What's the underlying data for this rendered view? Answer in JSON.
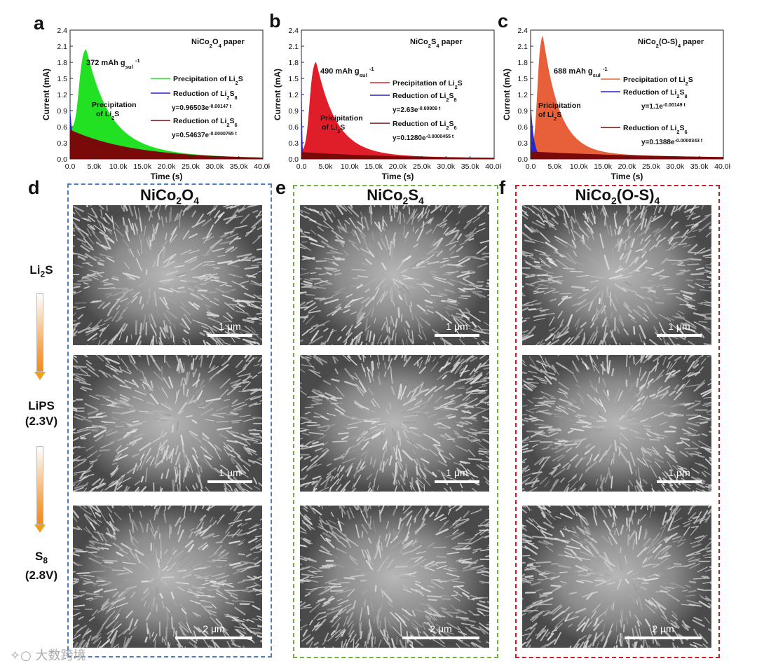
{
  "panel_letters": {
    "a": "a",
    "b": "b",
    "c": "c",
    "d": "d",
    "e": "e",
    "f": "f"
  },
  "chart_data": [
    {
      "type": "area",
      "panel": "a",
      "title": "NiCo2O4 paper",
      "title_main": "NiCo",
      "title_sub1": "2",
      "title_mid": "O",
      "title_sub2": "4",
      "title_end": " paper",
      "xlabel": "Time (s)",
      "ylabel": "Current (mA)",
      "xlim": [
        0,
        40000
      ],
      "ylim": [
        0,
        2.4
      ],
      "xticks": [
        "0.0",
        "5.0k",
        "10.0k",
        "15.0k",
        "20.0k",
        "25.0k",
        "30.0k",
        "35.0k",
        "40.0k"
      ],
      "yticks": [
        "0.0",
        "0.3",
        "0.6",
        "0.9",
        "1.2",
        "1.5",
        "1.8",
        "2.1",
        "2.4"
      ],
      "capacity_label": {
        "value": "372 mAh g",
        "sub": "sul",
        "sup": "-1"
      },
      "peak": {
        "t": 3300,
        "current": 1.76
      },
      "series": [
        {
          "name": "Precipitation of Li2S",
          "color": "#22e022"
        },
        {
          "name": "Reduction of Li2S8",
          "color": "#2222cc"
        },
        {
          "name": "Reduction of Li2S6",
          "color": "#7a0a0a"
        }
      ],
      "fits": {
        "li2s8": {
          "y": "y=0.96503e",
          "exp": "-0.00147 t",
          "a": 0.96503,
          "k": 0.00147
        },
        "li2s6": {
          "y": "y=0.54637e",
          "exp": "-0.0000765 t",
          "a": 0.54637,
          "k": 7.65e-05
        }
      },
      "annotation": {
        "line1": "Precipitation",
        "line2": "of Li",
        "sub": "2",
        "end": "S"
      },
      "colors": {
        "precip": "#22e022",
        "s8": "#2222cc",
        "s6": "#7a0a0a"
      }
    },
    {
      "type": "area",
      "panel": "b",
      "title": "NiCo2S4 paper",
      "title_main": "NiCo",
      "title_sub1": "2",
      "title_mid": "S",
      "title_sub2": "4",
      "title_end": " paper",
      "xlabel": "Time (s)",
      "ylabel": "Current (mA)",
      "xlim": [
        0,
        40000
      ],
      "ylim": [
        0,
        2.4
      ],
      "xticks": [
        "0.0",
        "5.0k",
        "10.0k",
        "15.0k",
        "20.0k",
        "25.0k",
        "30.0k",
        "35.0k",
        "40.0k"
      ],
      "yticks": [
        "0.0",
        "0.3",
        "0.6",
        "0.9",
        "1.2",
        "1.5",
        "1.8",
        "2.1",
        "2.4"
      ],
      "capacity_label": {
        "value": "490 mAh g",
        "sub": "sul",
        "sup": "-1"
      },
      "peak": {
        "t": 3000,
        "current": 1.78
      },
      "series": [
        {
          "name": "Precipitation of Li2S",
          "color": "#e01e2a"
        },
        {
          "name": "Reduction of Li2S8",
          "color": "#2222cc"
        },
        {
          "name": "Reduction of Li2S6",
          "color": "#7a0a0a"
        }
      ],
      "fits": {
        "li2s8": {
          "y": "y=2.63e",
          "exp": "-0.00909 t",
          "a": 2.63,
          "k": 0.00909
        },
        "li2s6": {
          "y": "y=0.1280e",
          "exp": "-0.0000455 t",
          "a": 0.128,
          "k": 4.55e-05
        }
      },
      "annotation": {
        "line1": "Pricipitation",
        "line2": "of Li",
        "sub": "2",
        "end": "S"
      },
      "colors": {
        "precip": "#e01e2a",
        "s8": "#2222cc",
        "s6": "#7a0a0a"
      }
    },
    {
      "type": "area",
      "panel": "c",
      "title": "NiCo2(O-S)4 paper",
      "title_main": "NiCo",
      "title_sub1": "2",
      "title_mid": "(O-S)",
      "title_sub2": "4",
      "title_end": " paper",
      "xlabel": "Time (s)",
      "ylabel": "Current (mA)",
      "xlim": [
        0,
        40000
      ],
      "ylim": [
        0,
        2.4
      ],
      "xticks": [
        "0.0",
        "5.0k",
        "10.0k",
        "15.0k",
        "20.0k",
        "25.0k",
        "30.0k",
        "35.0k",
        "40.0k"
      ],
      "yticks": [
        "0.0",
        "0.3",
        "0.6",
        "0.9",
        "1.2",
        "1.5",
        "1.8",
        "2.1",
        "2.4"
      ],
      "capacity_label": {
        "value": "688 mAh g",
        "sub": "sul",
        "sup": "-1"
      },
      "peak": {
        "t": 2500,
        "current": 2.27
      },
      "series": [
        {
          "name": "Precipitation of Li2S",
          "color": "#e8603a"
        },
        {
          "name": "Reduction of Li2S8",
          "color": "#2222cc"
        },
        {
          "name": "Reduction of Li2S6",
          "color": "#7a0a0a"
        }
      ],
      "fits": {
        "li2s8": {
          "y": "y=1.1e",
          "exp": "-0.00149 t",
          "a": 1.1,
          "k": 0.00149
        },
        "li2s6": {
          "y": "y=0.1388e",
          "exp": "-0.0000343 t",
          "a": 0.1388,
          "k": 3.43e-05
        }
      },
      "annotation": {
        "line1": "Pricipitation",
        "line2": "of Li",
        "sub": "2",
        "end": "S"
      },
      "colors": {
        "precip": "#e8603a",
        "s8": "#2222cc",
        "s6": "#7a0a0a"
      }
    }
  ],
  "legend_text": {
    "precip": "Precipitation of Li",
    "red_s8": "Reduction of Li",
    "red_s6": "Reduction of Li",
    "sub2": "2",
    "s": "S",
    "s8sub": "8",
    "s6sub": "6"
  },
  "sem_columns": [
    {
      "title_main": "NiCo",
      "sub1": "2",
      "mid": "O",
      "sub2": "4",
      "end": "",
      "border": "#4a7cc8"
    },
    {
      "title_main": "NiCo",
      "sub1": "2",
      "mid": "S",
      "sub2": "4",
      "end": "",
      "border": "#6db33f"
    },
    {
      "title_main": "NiCo",
      "sub1": "2",
      "mid": "(O-S)",
      "sub2": "4",
      "end": "",
      "border": "#c8202a"
    }
  ],
  "scale_labels": {
    "one": "1 μm",
    "two": "2 μm"
  },
  "side_labels": {
    "li2s_main": "Li",
    "li2s_sub": "2",
    "li2s_end": "S",
    "lips": "LiPS",
    "lips_v": "(2.3V)",
    "s8_main": "S",
    "s8_sub": "8",
    "s8_v": "(2.8V)"
  },
  "watermark": "大数跨境"
}
